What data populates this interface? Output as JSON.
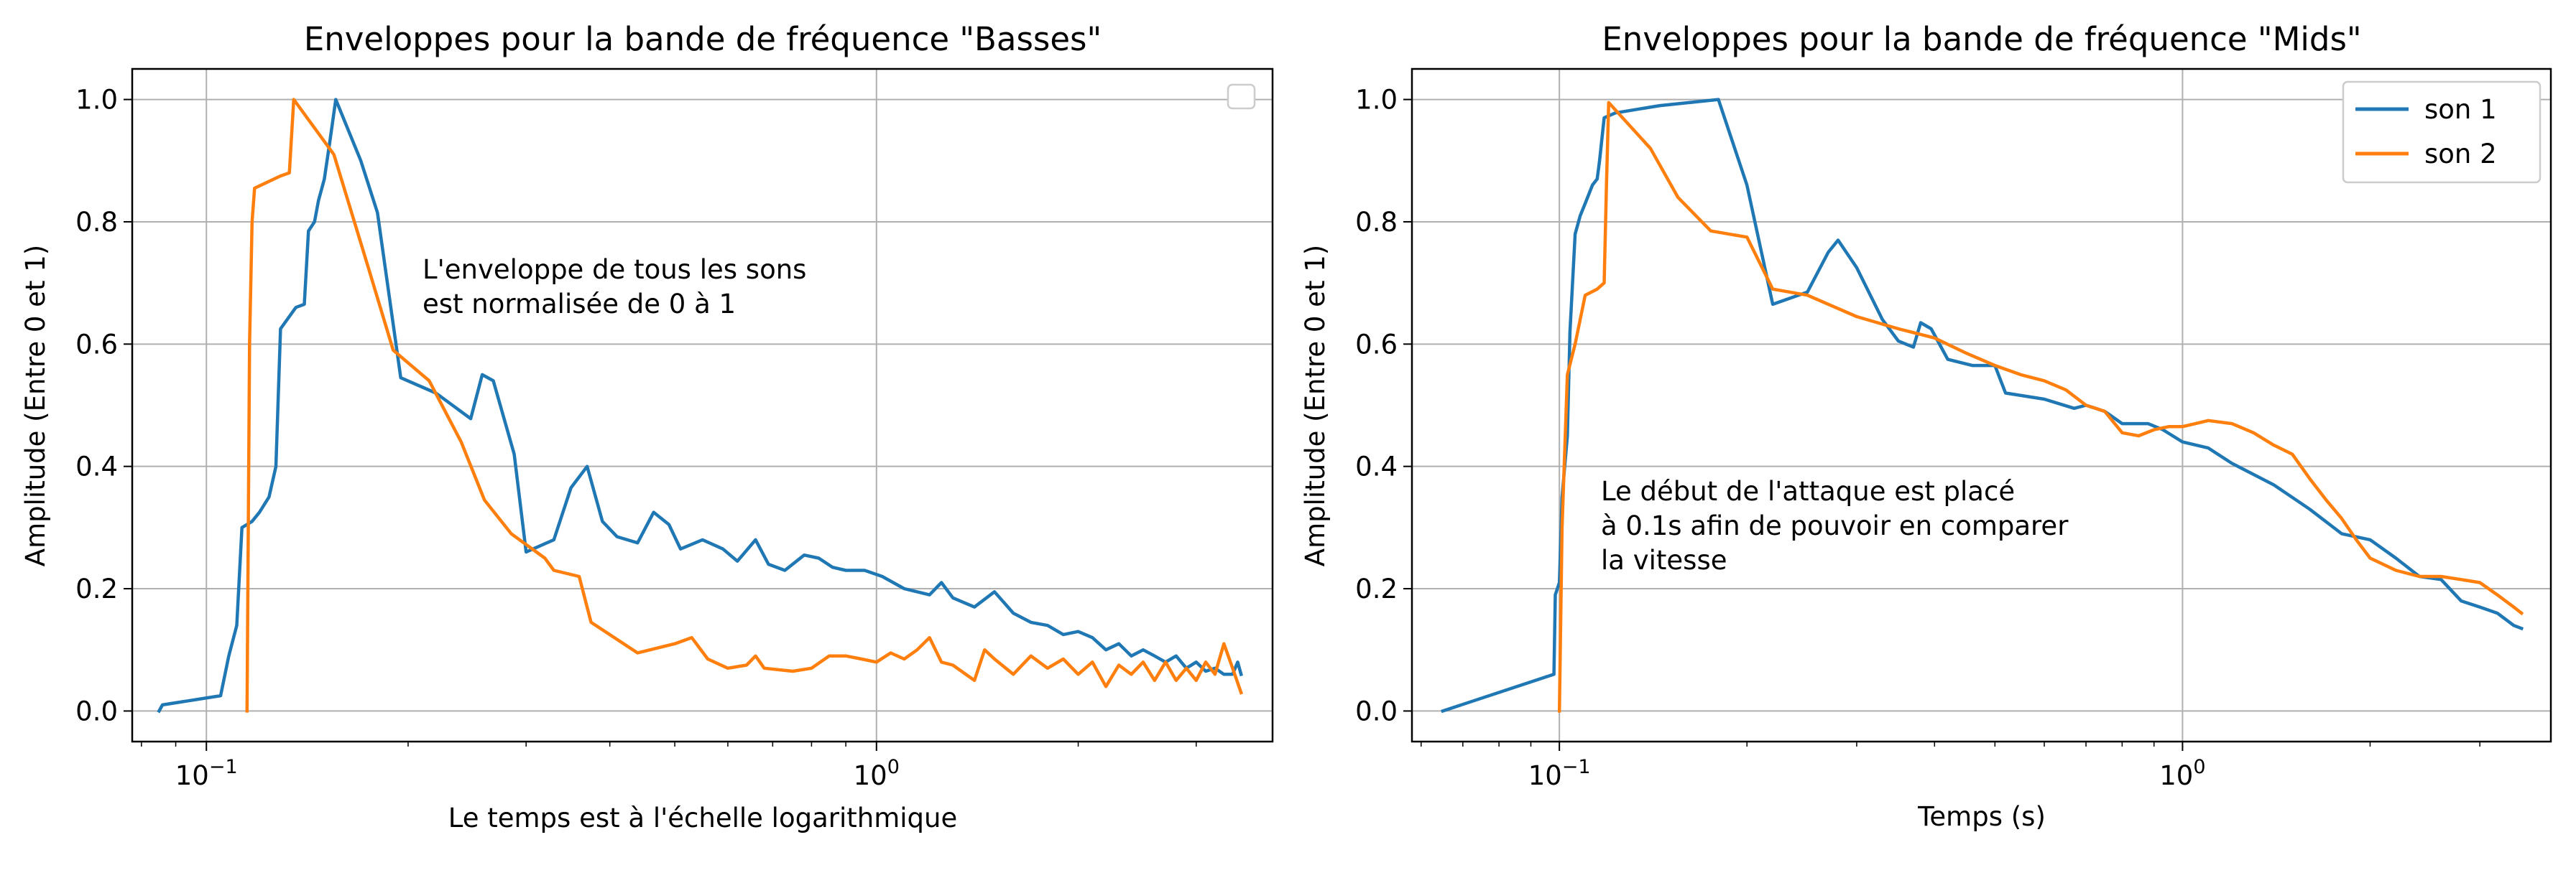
{
  "chart_data": [
    {
      "type": "line",
      "title": "Enveloppes pour la bande de fréquence \"Basses\"",
      "xlabel": "Le temps est à l'échelle logarithmique",
      "ylabel": "Amplitude (Entre 0 et 1)",
      "xscale": "log",
      "xlim": [
        0.0775,
        3.9
      ],
      "ylim": [
        -0.05,
        1.05
      ],
      "yticks": [
        "0.0",
        "0.2",
        "0.4",
        "0.6",
        "0.8",
        "1.0"
      ],
      "xticks": [
        {
          "base": "10",
          "exp": "−1"
        },
        {
          "base": "10",
          "exp": "0"
        }
      ],
      "grid": true,
      "legend": {
        "placement": "top-right",
        "entries": []
      },
      "annotation": [
        "L'enveloppe de tous les sons",
        "est normalisée de 0 à 1"
      ],
      "series": [
        {
          "color": "#1f77b4",
          "points": [
            [
              0.085,
              0.0
            ],
            [
              0.086,
              0.01
            ],
            [
              0.105,
              0.025
            ],
            [
              0.108,
              0.09
            ],
            [
              0.111,
              0.14
            ],
            [
              0.113,
              0.3
            ],
            [
              0.117,
              0.31
            ],
            [
              0.12,
              0.325
            ],
            [
              0.124,
              0.35
            ],
            [
              0.127,
              0.4
            ],
            [
              0.129,
              0.625
            ],
            [
              0.136,
              0.66
            ],
            [
              0.14,
              0.665
            ],
            [
              0.142,
              0.785
            ],
            [
              0.145,
              0.8
            ],
            [
              0.147,
              0.835
            ],
            [
              0.15,
              0.87
            ],
            [
              0.153,
              0.935
            ],
            [
              0.156,
              1.0
            ],
            [
              0.17,
              0.9
            ],
            [
              0.18,
              0.815
            ],
            [
              0.195,
              0.545
            ],
            [
              0.22,
              0.52
            ],
            [
              0.248,
              0.478
            ],
            [
              0.258,
              0.55
            ],
            [
              0.268,
              0.54
            ],
            [
              0.288,
              0.42
            ],
            [
              0.3,
              0.26
            ],
            [
              0.33,
              0.28
            ],
            [
              0.35,
              0.365
            ],
            [
              0.37,
              0.4
            ],
            [
              0.39,
              0.31
            ],
            [
              0.41,
              0.285
            ],
            [
              0.44,
              0.275
            ],
            [
              0.465,
              0.325
            ],
            [
              0.49,
              0.305
            ],
            [
              0.51,
              0.265
            ],
            [
              0.55,
              0.28
            ],
            [
              0.59,
              0.265
            ],
            [
              0.62,
              0.245
            ],
            [
              0.66,
              0.28
            ],
            [
              0.69,
              0.24
            ],
            [
              0.73,
              0.23
            ],
            [
              0.78,
              0.255
            ],
            [
              0.82,
              0.25
            ],
            [
              0.86,
              0.235
            ],
            [
              0.9,
              0.23
            ],
            [
              0.96,
              0.23
            ],
            [
              1.02,
              0.22
            ],
            [
              1.1,
              0.2
            ],
            [
              1.2,
              0.19
            ],
            [
              1.25,
              0.21
            ],
            [
              1.3,
              0.185
            ],
            [
              1.4,
              0.17
            ],
            [
              1.5,
              0.195
            ],
            [
              1.6,
              0.16
            ],
            [
              1.7,
              0.145
            ],
            [
              1.8,
              0.14
            ],
            [
              1.9,
              0.125
            ],
            [
              2.0,
              0.13
            ],
            [
              2.1,
              0.12
            ],
            [
              2.2,
              0.1
            ],
            [
              2.3,
              0.11
            ],
            [
              2.4,
              0.09
            ],
            [
              2.5,
              0.1
            ],
            [
              2.6,
              0.09
            ],
            [
              2.7,
              0.08
            ],
            [
              2.8,
              0.09
            ],
            [
              2.9,
              0.07
            ],
            [
              3.0,
              0.08
            ],
            [
              3.1,
              0.065
            ],
            [
              3.2,
              0.07
            ],
            [
              3.3,
              0.06
            ],
            [
              3.4,
              0.06
            ],
            [
              3.46,
              0.08
            ],
            [
              3.5,
              0.06
            ]
          ]
        },
        {
          "color": "#ff7f0e",
          "points": [
            [
              0.115,
              0.0
            ],
            [
              0.116,
              0.6
            ],
            [
              0.117,
              0.8
            ],
            [
              0.118,
              0.855
            ],
            [
              0.129,
              0.875
            ],
            [
              0.133,
              0.88
            ],
            [
              0.135,
              1.0
            ],
            [
              0.155,
              0.91
            ],
            [
              0.175,
              0.72
            ],
            [
              0.19,
              0.59
            ],
            [
              0.215,
              0.54
            ],
            [
              0.24,
              0.44
            ],
            [
              0.26,
              0.345
            ],
            [
              0.285,
              0.29
            ],
            [
              0.32,
              0.25
            ],
            [
              0.33,
              0.23
            ],
            [
              0.36,
              0.22
            ],
            [
              0.375,
              0.145
            ],
            [
              0.44,
              0.095
            ],
            [
              0.5,
              0.11
            ],
            [
              0.53,
              0.12
            ],
            [
              0.56,
              0.085
            ],
            [
              0.6,
              0.07
            ],
            [
              0.64,
              0.075
            ],
            [
              0.66,
              0.09
            ],
            [
              0.68,
              0.07
            ],
            [
              0.75,
              0.065
            ],
            [
              0.8,
              0.07
            ],
            [
              0.85,
              0.09
            ],
            [
              0.9,
              0.09
            ],
            [
              0.95,
              0.085
            ],
            [
              1.0,
              0.08
            ],
            [
              1.05,
              0.095
            ],
            [
              1.1,
              0.085
            ],
            [
              1.15,
              0.1
            ],
            [
              1.2,
              0.12
            ],
            [
              1.25,
              0.08
            ],
            [
              1.3,
              0.075
            ],
            [
              1.4,
              0.05
            ],
            [
              1.45,
              0.1
            ],
            [
              1.5,
              0.085
            ],
            [
              1.6,
              0.06
            ],
            [
              1.7,
              0.09
            ],
            [
              1.8,
              0.07
            ],
            [
              1.9,
              0.085
            ],
            [
              2.0,
              0.06
            ],
            [
              2.1,
              0.08
            ],
            [
              2.2,
              0.04
            ],
            [
              2.3,
              0.075
            ],
            [
              2.4,
              0.06
            ],
            [
              2.5,
              0.08
            ],
            [
              2.6,
              0.05
            ],
            [
              2.7,
              0.08
            ],
            [
              2.8,
              0.05
            ],
            [
              2.9,
              0.07
            ],
            [
              3.0,
              0.05
            ],
            [
              3.1,
              0.08
            ],
            [
              3.2,
              0.06
            ],
            [
              3.3,
              0.11
            ],
            [
              3.4,
              0.07
            ],
            [
              3.5,
              0.03
            ]
          ]
        }
      ]
    },
    {
      "type": "line",
      "title": "Enveloppes pour la bande de fréquence \"Mids\"",
      "xlabel": "Temps (s)",
      "ylabel": "Amplitude (Entre 0 et 1)",
      "xscale": "log",
      "xlim": [
        0.058,
        3.9
      ],
      "ylim": [
        -0.05,
        1.05
      ],
      "yticks": [
        "0.0",
        "0.2",
        "0.4",
        "0.6",
        "0.8",
        "1.0"
      ],
      "xticks": [
        {
          "base": "10",
          "exp": "−1"
        },
        {
          "base": "10",
          "exp": "0"
        }
      ],
      "grid": true,
      "legend": {
        "placement": "top-right",
        "entries": [
          "son 1",
          "son 2"
        ]
      },
      "annotation": [
        "Le début de l'attaque est placé",
        "à 0.1s afin de pouvoir en comparer",
        "la vitesse"
      ],
      "series": [
        {
          "name": "son 1",
          "color": "#1f77b4",
          "points": [
            [
              0.065,
              0.0
            ],
            [
              0.098,
              0.06
            ],
            [
              0.0985,
              0.19
            ],
            [
              0.1,
              0.21
            ],
            [
              0.101,
              0.35
            ],
            [
              0.103,
              0.45
            ],
            [
              0.104,
              0.62
            ],
            [
              0.106,
              0.78
            ],
            [
              0.108,
              0.81
            ],
            [
              0.11,
              0.83
            ],
            [
              0.113,
              0.86
            ],
            [
              0.115,
              0.87
            ],
            [
              0.116,
              0.9
            ],
            [
              0.118,
              0.97
            ],
            [
              0.123,
              0.978
            ],
            [
              0.145,
              0.99
            ],
            [
              0.18,
              1.0
            ],
            [
              0.2,
              0.86
            ],
            [
              0.22,
              0.665
            ],
            [
              0.25,
              0.685
            ],
            [
              0.27,
              0.75
            ],
            [
              0.28,
              0.77
            ],
            [
              0.3,
              0.725
            ],
            [
              0.33,
              0.64
            ],
            [
              0.35,
              0.605
            ],
            [
              0.37,
              0.595
            ],
            [
              0.38,
              0.635
            ],
            [
              0.395,
              0.625
            ],
            [
              0.42,
              0.575
            ],
            [
              0.46,
              0.565
            ],
            [
              0.5,
              0.565
            ],
            [
              0.52,
              0.52
            ],
            [
              0.6,
              0.51
            ],
            [
              0.67,
              0.495
            ],
            [
              0.7,
              0.5
            ],
            [
              0.75,
              0.49
            ],
            [
              0.8,
              0.47
            ],
            [
              0.85,
              0.47
            ],
            [
              0.88,
              0.47
            ],
            [
              0.93,
              0.46
            ],
            [
              1.0,
              0.44
            ],
            [
              1.1,
              0.43
            ],
            [
              1.2,
              0.405
            ],
            [
              1.4,
              0.37
            ],
            [
              1.6,
              0.33
            ],
            [
              1.8,
              0.29
            ],
            [
              2.0,
              0.28
            ],
            [
              2.2,
              0.25
            ],
            [
              2.4,
              0.22
            ],
            [
              2.6,
              0.215
            ],
            [
              2.8,
              0.18
            ],
            [
              3.0,
              0.17
            ],
            [
              3.2,
              0.16
            ],
            [
              3.4,
              0.14
            ],
            [
              3.5,
              0.135
            ]
          ]
        },
        {
          "name": "son 2",
          "color": "#ff7f0e",
          "points": [
            [
              0.1,
              0.0
            ],
            [
              0.101,
              0.3
            ],
            [
              0.103,
              0.55
            ],
            [
              0.106,
              0.6
            ],
            [
              0.11,
              0.68
            ],
            [
              0.115,
              0.69
            ],
            [
              0.118,
              0.7
            ],
            [
              0.119,
              0.86
            ],
            [
              0.12,
              0.995
            ],
            [
              0.14,
              0.92
            ],
            [
              0.155,
              0.84
            ],
            [
              0.175,
              0.785
            ],
            [
              0.2,
              0.775
            ],
            [
              0.22,
              0.69
            ],
            [
              0.25,
              0.68
            ],
            [
              0.3,
              0.645
            ],
            [
              0.35,
              0.625
            ],
            [
              0.4,
              0.61
            ],
            [
              0.45,
              0.585
            ],
            [
              0.5,
              0.565
            ],
            [
              0.55,
              0.55
            ],
            [
              0.6,
              0.54
            ],
            [
              0.65,
              0.525
            ],
            [
              0.7,
              0.5
            ],
            [
              0.75,
              0.49
            ],
            [
              0.8,
              0.455
            ],
            [
              0.85,
              0.45
            ],
            [
              0.9,
              0.46
            ],
            [
              0.95,
              0.465
            ],
            [
              1.0,
              0.465
            ],
            [
              1.1,
              0.475
            ],
            [
              1.2,
              0.47
            ],
            [
              1.3,
              0.455
            ],
            [
              1.4,
              0.435
            ],
            [
              1.5,
              0.42
            ],
            [
              1.6,
              0.38
            ],
            [
              1.7,
              0.345
            ],
            [
              1.8,
              0.315
            ],
            [
              1.9,
              0.28
            ],
            [
              2.0,
              0.25
            ],
            [
              2.2,
              0.23
            ],
            [
              2.4,
              0.22
            ],
            [
              2.6,
              0.22
            ],
            [
              2.8,
              0.215
            ],
            [
              3.0,
              0.21
            ],
            [
              3.2,
              0.19
            ],
            [
              3.4,
              0.17
            ],
            [
              3.5,
              0.16
            ]
          ]
        }
      ]
    }
  ]
}
